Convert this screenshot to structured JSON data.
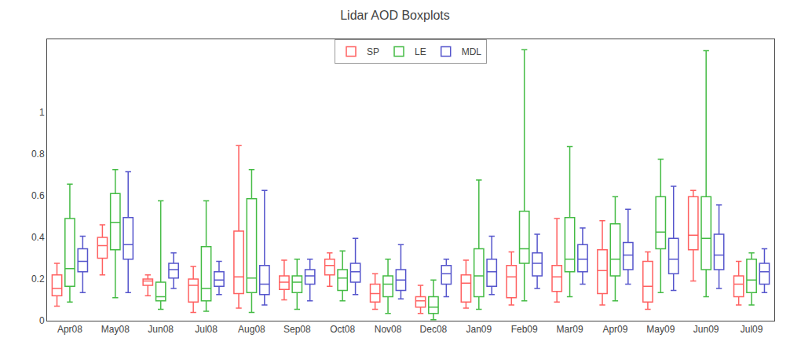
{
  "chart_data": {
    "type": "box",
    "title": "Lidar AOD Boxplots",
    "categories": [
      "Apr08",
      "May08",
      "Jun08",
      "Jul08",
      "Aug08",
      "Sep08",
      "Oct08",
      "Nov08",
      "Dec08",
      "Jan09",
      "Feb09",
      "Mar09",
      "Apr09",
      "May09",
      "Jun09",
      "Jul09"
    ],
    "ylim": [
      0,
      1.35
    ],
    "yticks": [
      0,
      0.2,
      0.4,
      0.6,
      0.8,
      1
    ],
    "grid": false,
    "legend": "top",
    "series": [
      {
        "name": "SP",
        "color": "#FF6060",
        "q1": [
          0.12,
          0.3,
          0.17,
          0.09,
          0.13,
          0.15,
          0.22,
          0.09,
          0.065,
          0.09,
          0.11,
          0.14,
          0.13,
          0.09,
          0.34,
          0.115
        ],
        "median": [
          0.155,
          0.36,
          0.19,
          0.17,
          0.21,
          0.185,
          0.265,
          0.13,
          0.095,
          0.18,
          0.21,
          0.21,
          0.24,
          0.165,
          0.41,
          0.175
        ],
        "q3": [
          0.22,
          0.4,
          0.2,
          0.2,
          0.43,
          0.215,
          0.295,
          0.175,
          0.115,
          0.22,
          0.265,
          0.265,
          0.34,
          0.285,
          0.595,
          0.215
        ],
        "whisker_low": [
          0.07,
          0.22,
          0.12,
          0.04,
          0.06,
          0.1,
          0.165,
          0.055,
          0.035,
          0.06,
          0.075,
          0.09,
          0.075,
          0.055,
          0.19,
          0.075
        ],
        "whisker_high": [
          0.275,
          0.46,
          0.22,
          0.26,
          0.84,
          0.29,
          0.325,
          0.225,
          0.17,
          0.29,
          0.33,
          0.49,
          0.48,
          0.33,
          0.625,
          0.285
        ]
      },
      {
        "name": "LE",
        "color": "#44BB44",
        "q1": [
          0.165,
          0.34,
          0.095,
          0.095,
          0.135,
          0.135,
          0.145,
          0.115,
          0.035,
          0.115,
          0.275,
          0.235,
          0.215,
          0.345,
          0.245,
          0.135
        ],
        "median": [
          0.25,
          0.47,
          0.115,
          0.155,
          0.205,
          0.185,
          0.205,
          0.175,
          0.065,
          0.215,
          0.345,
          0.295,
          0.295,
          0.425,
          0.395,
          0.195
        ],
        "q3": [
          0.49,
          0.61,
          0.185,
          0.355,
          0.585,
          0.215,
          0.245,
          0.215,
          0.115,
          0.345,
          0.525,
          0.495,
          0.465,
          0.595,
          0.595,
          0.295
        ],
        "whisker_low": [
          0.09,
          0.11,
          0.055,
          0.045,
          0.04,
          0.055,
          0.095,
          0.035,
          0.005,
          0.055,
          0.095,
          0.115,
          0.095,
          0.135,
          0.115,
          0.075
        ],
        "whisker_high": [
          0.655,
          0.725,
          0.575,
          0.575,
          0.725,
          0.295,
          0.335,
          0.295,
          0.195,
          0.675,
          1.3,
          0.835,
          0.595,
          0.775,
          1.295,
          0.325
        ]
      },
      {
        "name": "MDL",
        "color": "#5555CC",
        "q1": [
          0.235,
          0.295,
          0.205,
          0.165,
          0.125,
          0.175,
          0.185,
          0.145,
          0.175,
          0.165,
          0.215,
          0.235,
          0.245,
          0.225,
          0.245,
          0.175
        ],
        "median": [
          0.285,
          0.365,
          0.245,
          0.195,
          0.175,
          0.215,
          0.235,
          0.195,
          0.225,
          0.235,
          0.275,
          0.295,
          0.315,
          0.295,
          0.315,
          0.235
        ],
        "q3": [
          0.345,
          0.495,
          0.275,
          0.235,
          0.265,
          0.245,
          0.275,
          0.245,
          0.265,
          0.295,
          0.325,
          0.365,
          0.375,
          0.395,
          0.415,
          0.275
        ],
        "whisker_low": [
          0.135,
          0.135,
          0.155,
          0.125,
          0.075,
          0.095,
          0.125,
          0.105,
          0.115,
          0.125,
          0.155,
          0.175,
          0.175,
          0.145,
          0.155,
          0.135
        ],
        "whisker_high": [
          0.405,
          0.715,
          0.325,
          0.285,
          0.625,
          0.295,
          0.395,
          0.365,
          0.295,
          0.405,
          0.415,
          0.445,
          0.535,
          0.645,
          0.555,
          0.345
        ]
      }
    ]
  }
}
